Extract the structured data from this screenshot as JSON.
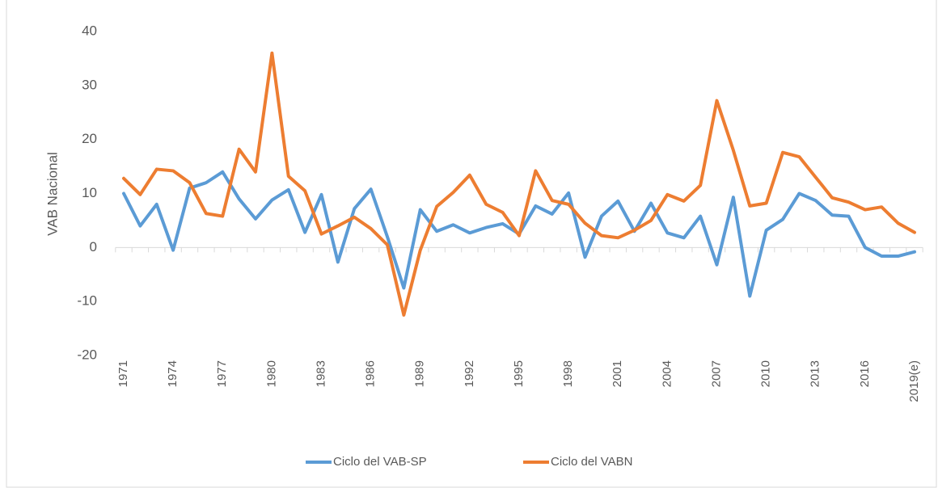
{
  "chart_data": {
    "type": "line",
    "y_label": "VAB Nacional",
    "categories": [
      "1971",
      null,
      null,
      "1974",
      null,
      null,
      "1977",
      null,
      null,
      "1980",
      null,
      null,
      "1983",
      null,
      null,
      "1986",
      null,
      null,
      "1989",
      null,
      null,
      "1992",
      null,
      null,
      "1995",
      null,
      null,
      "1998",
      null,
      null,
      "2001",
      null,
      null,
      "2004",
      null,
      null,
      "2007",
      null,
      null,
      "2010",
      null,
      null,
      "2013",
      null,
      null,
      "2016",
      null,
      null,
      "2019(e)"
    ],
    "series": [
      {
        "name": "Ciclo del VAB-SP",
        "color": "#5b9bd5",
        "values": [
          10,
          4,
          8,
          -0.5,
          11,
          12,
          14,
          9,
          5.3,
          8.8,
          10.7,
          2.8,
          9.8,
          -2.7,
          7.2,
          10.8,
          2,
          -7.5,
          7,
          3,
          4.2,
          2.7,
          3.7,
          4.4,
          2.5,
          7.7,
          6.2,
          10.1,
          -1.8,
          5.8,
          8.6,
          3,
          8.2,
          2.7,
          1.8,
          5.8,
          -3.2,
          9.3,
          -9,
          3.2,
          5.2,
          10,
          8.7,
          6,
          5.8,
          0,
          -1.6,
          -1.6,
          -0.8
        ]
      },
      {
        "name": "Ciclo del VABN",
        "color": "#ed7d31",
        "values": [
          12.8,
          9.8,
          14.5,
          14.2,
          12,
          6.3,
          5.8,
          18.2,
          14,
          36,
          13.2,
          10.5,
          2.5,
          4,
          5.6,
          3.5,
          0.5,
          -12.5,
          -0.5,
          7.6,
          10.2,
          13.4,
          8,
          6.5,
          2.2,
          14.2,
          8.7,
          8,
          4.5,
          2.2,
          1.8,
          3.2,
          5,
          9.8,
          8.6,
          11.5,
          27.2,
          18,
          7.7,
          8.2,
          17.6,
          16.8,
          13,
          9.2,
          8.4,
          7,
          7.5,
          4.5,
          2.8
        ]
      }
    ],
    "ylim": [
      -20,
      40
    ],
    "yticks": [
      -20,
      -10,
      0,
      10,
      20,
      30,
      40
    ],
    "grid": false,
    "legend": "bottom"
  }
}
